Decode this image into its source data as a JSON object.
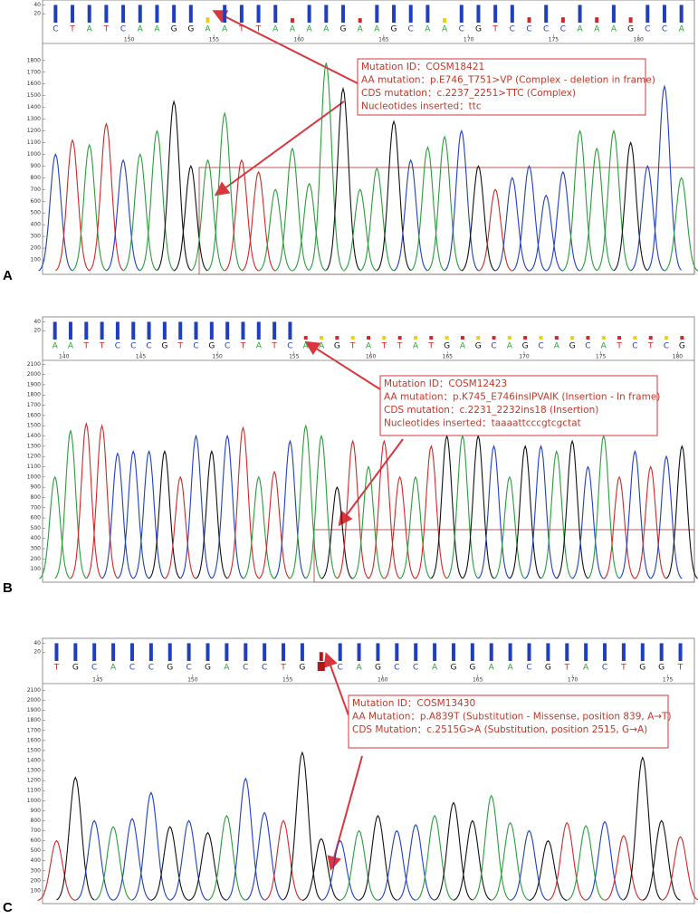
{
  "panels": [
    {
      "label": "A",
      "sequence": [
        "C",
        "T",
        "A",
        "T",
        "C",
        "A",
        "A",
        "G",
        "G",
        "A",
        "A",
        "T",
        "T",
        "A",
        "A",
        "A",
        "A",
        "G",
        "A",
        "A",
        "G",
        "C",
        "A",
        "A",
        "C",
        "G",
        "T",
        "C",
        "C",
        "C",
        "C",
        "A",
        "A",
        "A",
        "G",
        "C",
        "C",
        "A"
      ],
      "quality": [
        40,
        40,
        40,
        40,
        40,
        40,
        40,
        40,
        40,
        12,
        40,
        40,
        40,
        40,
        10,
        40,
        40,
        40,
        10,
        40,
        40,
        40,
        40,
        10,
        40,
        40,
        40,
        40,
        12,
        40,
        12,
        40,
        12,
        40,
        12,
        40,
        40,
        40
      ],
      "peaks": [
        1000,
        1120,
        1080,
        1260,
        950,
        1000,
        1200,
        1450,
        900,
        950,
        1350,
        950,
        850,
        700,
        1050,
        750,
        1780,
        1560,
        700,
        880,
        1280,
        950,
        1060,
        1150,
        1200,
        900,
        700,
        800,
        900,
        650,
        850,
        1200,
        1050,
        1200,
        1100,
        900,
        1580,
        800
      ],
      "positions": [
        150,
        155,
        160,
        165,
        170,
        175,
        180
      ],
      "xlim": [
        144.9,
        183.3
      ],
      "ylim": [
        0,
        1930
      ],
      "yticks": [
        100,
        200,
        300,
        400,
        500,
        600,
        700,
        800,
        900,
        1000,
        1100,
        1200,
        1300,
        1400,
        1500,
        1600,
        1700,
        1800
      ],
      "qlim": [
        0,
        45
      ],
      "qticks": [
        40,
        20
      ],
      "annotation": [
        "Mutation ID：COSM18421",
        "AA mutation：p.E746_T751>VP (Complex - deletion in frame)",
        "CDS mutation：c.2237_2251>TTC (Complex)",
        "Nucleotides inserted：ttc"
      ]
    },
    {
      "label": "B",
      "sequence": [
        "A",
        "A",
        "T",
        "T",
        "C",
        "C",
        "C",
        "G",
        "T",
        "C",
        "G",
        "C",
        "T",
        "A",
        "T",
        "C",
        "A",
        "A",
        "G",
        "T",
        "A",
        "T",
        "T",
        "A",
        "T",
        "G",
        "A",
        "G",
        "C",
        "A",
        "G",
        "C",
        "A",
        "G",
        "C",
        "A",
        "T",
        "C",
        "T",
        "C",
        "G"
      ],
      "quality": [
        40,
        40,
        40,
        40,
        40,
        40,
        40,
        40,
        40,
        40,
        40,
        40,
        40,
        40,
        40,
        40,
        8,
        8,
        8,
        8,
        8,
        8,
        8,
        8,
        8,
        8,
        8,
        8,
        8,
        8,
        8,
        8,
        8,
        8,
        8,
        8,
        8,
        8,
        8,
        8,
        8
      ],
      "peaks": [
        1000,
        1450,
        1520,
        1500,
        1230,
        1250,
        1250,
        1250,
        1000,
        1400,
        1250,
        1400,
        1480,
        1000,
        1050,
        1350,
        1500,
        1400,
        900,
        1350,
        1100,
        1350,
        1000,
        1000,
        1300,
        1400,
        1400,
        1400,
        1300,
        1000,
        1300,
        1300,
        1250,
        1350,
        1100,
        1400,
        1000,
        1250,
        1100,
        1200,
        1300
      ],
      "positions": [
        140,
        145,
        150,
        155,
        160,
        165,
        170,
        175,
        180
      ],
      "xlim": [
        138.6,
        181.1
      ],
      "ylim": [
        0,
        2120
      ],
      "yticks": [
        100,
        200,
        300,
        400,
        500,
        600,
        700,
        800,
        900,
        1000,
        1100,
        1200,
        1300,
        1400,
        1500,
        1600,
        1700,
        1800,
        1900,
        2000,
        2100
      ],
      "qlim": [
        0,
        45
      ],
      "qticks": [
        40,
        20
      ],
      "annotation": [
        "Mutation ID：COSM12423",
        "AA mutation：p.K745_E746insIPVAIK (Insertion - In frame)",
        "CDS mutation：c.2231_2232ins18 (Insertion)",
        "Nucleotides inserted：taaaattcccgtcgctat"
      ]
    },
    {
      "label": "C",
      "sequence": [
        "T",
        "G",
        "C",
        "A",
        "C",
        "C",
        "G",
        "C",
        "G",
        "A",
        "C",
        "C",
        "T",
        "G",
        null,
        "C",
        "A",
        "G",
        "C",
        "C",
        "A",
        "G",
        "G",
        "A",
        "A",
        "C",
        "G",
        "T",
        "A",
        "C",
        "T",
        "G",
        "G",
        "T"
      ],
      "quality": [
        40,
        40,
        40,
        40,
        40,
        40,
        40,
        40,
        40,
        40,
        40,
        40,
        40,
        40,
        20,
        40,
        40,
        40,
        40,
        40,
        40,
        40,
        40,
        40,
        40,
        40,
        40,
        40,
        40,
        40,
        40,
        40,
        40,
        40
      ],
      "peaks": [
        600,
        1230,
        800,
        740,
        820,
        1080,
        740,
        800,
        680,
        850,
        1220,
        880,
        800,
        1480,
        620,
        600,
        700,
        850,
        700,
        760,
        850,
        980,
        800,
        1050,
        780,
        700,
        600,
        780,
        750,
        790,
        650,
        1430,
        800,
        640
      ],
      "positions": [
        145,
        150,
        155,
        160,
        165,
        170,
        175
      ],
      "xlim": [
        142.1,
        176.4
      ],
      "ylim": [
        0,
        2150
      ],
      "yticks": [
        100,
        200,
        300,
        400,
        500,
        600,
        700,
        800,
        900,
        1000,
        1100,
        1200,
        1300,
        1400,
        1500,
        1600,
        1700,
        1800,
        1900,
        2000,
        2100
      ],
      "qlim": [
        0,
        45
      ],
      "qticks": [
        40,
        20
      ],
      "annotation": [
        "Mutation ID：COSM13430",
        "AA Mutation：p.A839T (Substitution - Missense, position 839, A→T)",
        "CDS Mutation：c.2515G>A (Substitution, position 2515, G→A)"
      ]
    }
  ],
  "base_colors": {
    "A": "#2a9d3a",
    "C": "#1f3fbf",
    "G": "#111111",
    "T": "#d02828"
  }
}
